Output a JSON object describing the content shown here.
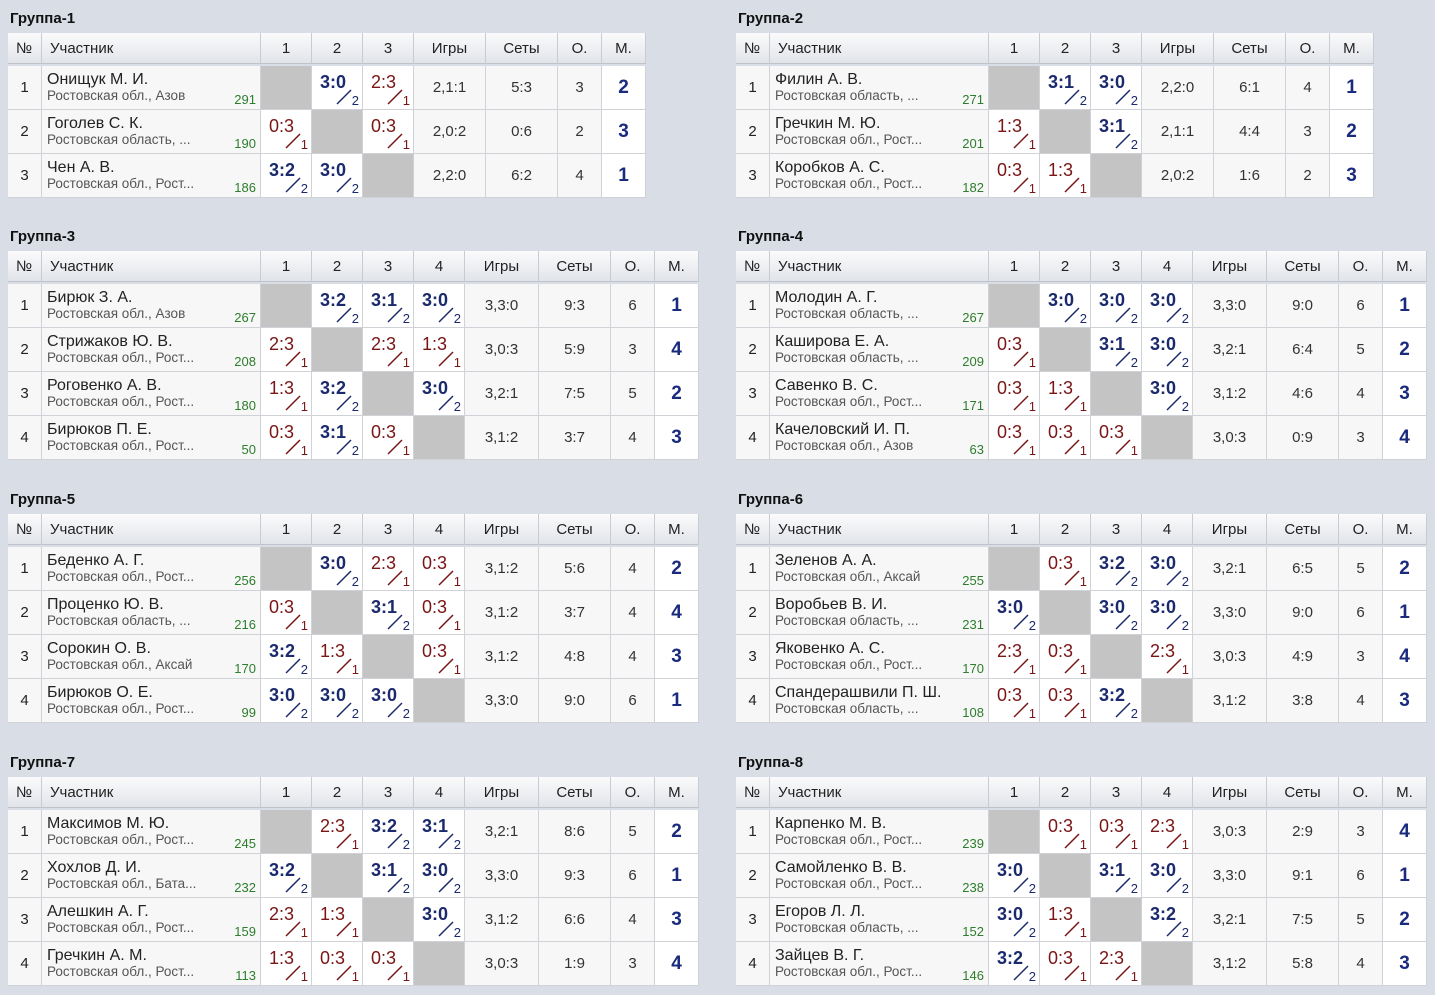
{
  "headers": {
    "num": "№",
    "name": "Участник",
    "games": "Игры",
    "sets": "Сеты",
    "points": "О.",
    "place": "М."
  },
  "groups": [
    {
      "title": "Группа-1",
      "players": [
        {
          "n": "1",
          "name": "Онищук М. И.",
          "city": "Ростовская обл., Азов",
          "rating": "291",
          "games": "2,1:1",
          "sets": "5:3",
          "points": "3",
          "place": "2",
          "results": [
            null,
            {
              "s": "3:0",
              "p": "2",
              "w": true
            },
            {
              "s": "2:3",
              "p": "1",
              "w": false
            }
          ]
        },
        {
          "n": "2",
          "name": "Гоголев С. К.",
          "city": "Ростовская область, ...",
          "rating": "190",
          "games": "2,0:2",
          "sets": "0:6",
          "points": "2",
          "place": "3",
          "results": [
            {
              "s": "0:3",
              "p": "1",
              "w": false
            },
            null,
            {
              "s": "0:3",
              "p": "1",
              "w": false
            }
          ]
        },
        {
          "n": "3",
          "name": "Чен А. В.",
          "city": "Ростовская обл., Рост...",
          "rating": "186",
          "games": "2,2:0",
          "sets": "6:2",
          "points": "4",
          "place": "1",
          "results": [
            {
              "s": "3:2",
              "p": "2",
              "w": true
            },
            {
              "s": "3:0",
              "p": "2",
              "w": true
            },
            null
          ]
        }
      ]
    },
    {
      "title": "Группа-2",
      "players": [
        {
          "n": "1",
          "name": "Филин А. В.",
          "city": "Ростовская область, ...",
          "rating": "271",
          "games": "2,2:0",
          "sets": "6:1",
          "points": "4",
          "place": "1",
          "results": [
            null,
            {
              "s": "3:1",
              "p": "2",
              "w": true
            },
            {
              "s": "3:0",
              "p": "2",
              "w": true
            }
          ]
        },
        {
          "n": "2",
          "name": "Гречкин М. Ю.",
          "city": "Ростовская обл., Рост...",
          "rating": "201",
          "games": "2,1:1",
          "sets": "4:4",
          "points": "3",
          "place": "2",
          "results": [
            {
              "s": "1:3",
              "p": "1",
              "w": false
            },
            null,
            {
              "s": "3:1",
              "p": "2",
              "w": true
            }
          ]
        },
        {
          "n": "3",
          "name": "Коробков А. С.",
          "city": "Ростовская обл., Рост...",
          "rating": "182",
          "games": "2,0:2",
          "sets": "1:6",
          "points": "2",
          "place": "3",
          "results": [
            {
              "s": "0:3",
              "p": "1",
              "w": false
            },
            {
              "s": "1:3",
              "p": "1",
              "w": false
            },
            null
          ]
        }
      ]
    },
    {
      "title": "Группа-3",
      "players": [
        {
          "n": "1",
          "name": "Бирюк З. А.",
          "city": "Ростовская обл., Азов",
          "rating": "267",
          "games": "3,3:0",
          "sets": "9:3",
          "points": "6",
          "place": "1",
          "results": [
            null,
            {
              "s": "3:2",
              "p": "2",
              "w": true
            },
            {
              "s": "3:1",
              "p": "2",
              "w": true
            },
            {
              "s": "3:0",
              "p": "2",
              "w": true
            }
          ]
        },
        {
          "n": "2",
          "name": "Стрижаков Ю. В.",
          "city": "Ростовская обл., Рост...",
          "rating": "208",
          "games": "3,0:3",
          "sets": "5:9",
          "points": "3",
          "place": "4",
          "results": [
            {
              "s": "2:3",
              "p": "1",
              "w": false
            },
            null,
            {
              "s": "2:3",
              "p": "1",
              "w": false
            },
            {
              "s": "1:3",
              "p": "1",
              "w": false
            }
          ]
        },
        {
          "n": "3",
          "name": "Роговенко А. В.",
          "city": "Ростовская обл., Рост...",
          "rating": "180",
          "games": "3,2:1",
          "sets": "7:5",
          "points": "5",
          "place": "2",
          "results": [
            {
              "s": "1:3",
              "p": "1",
              "w": false
            },
            {
              "s": "3:2",
              "p": "2",
              "w": true
            },
            null,
            {
              "s": "3:0",
              "p": "2",
              "w": true
            }
          ]
        },
        {
          "n": "4",
          "name": "Бирюков П. Е.",
          "city": "Ростовская обл., Рост...",
          "rating": "50",
          "games": "3,1:2",
          "sets": "3:7",
          "points": "4",
          "place": "3",
          "results": [
            {
              "s": "0:3",
              "p": "1",
              "w": false
            },
            {
              "s": "3:1",
              "p": "2",
              "w": true
            },
            {
              "s": "0:3",
              "p": "1",
              "w": false
            },
            null
          ]
        }
      ]
    },
    {
      "title": "Группа-4",
      "players": [
        {
          "n": "1",
          "name": "Молодин А. Г.",
          "city": "Ростовская область, ...",
          "rating": "267",
          "games": "3,3:0",
          "sets": "9:0",
          "points": "6",
          "place": "1",
          "results": [
            null,
            {
              "s": "3:0",
              "p": "2",
              "w": true
            },
            {
              "s": "3:0",
              "p": "2",
              "w": true
            },
            {
              "s": "3:0",
              "p": "2",
              "w": true
            }
          ]
        },
        {
          "n": "2",
          "name": "Каширова Е. А.",
          "city": "Ростовская область, ...",
          "rating": "209",
          "games": "3,2:1",
          "sets": "6:4",
          "points": "5",
          "place": "2",
          "results": [
            {
              "s": "0:3",
              "p": "1",
              "w": false
            },
            null,
            {
              "s": "3:1",
              "p": "2",
              "w": true
            },
            {
              "s": "3:0",
              "p": "2",
              "w": true
            }
          ]
        },
        {
          "n": "3",
          "name": "Савенко В. С.",
          "city": "Ростовская обл., Рост...",
          "rating": "171",
          "games": "3,1:2",
          "sets": "4:6",
          "points": "4",
          "place": "3",
          "results": [
            {
              "s": "0:3",
              "p": "1",
              "w": false
            },
            {
              "s": "1:3",
              "p": "1",
              "w": false
            },
            null,
            {
              "s": "3:0",
              "p": "2",
              "w": true
            }
          ]
        },
        {
          "n": "4",
          "name": "Качеловский И. П.",
          "city": "Ростовская обл., Азов",
          "rating": "63",
          "games": "3,0:3",
          "sets": "0:9",
          "points": "3",
          "place": "4",
          "results": [
            {
              "s": "0:3",
              "p": "1",
              "w": false
            },
            {
              "s": "0:3",
              "p": "1",
              "w": false
            },
            {
              "s": "0:3",
              "p": "1",
              "w": false
            },
            null
          ]
        }
      ]
    },
    {
      "title": "Группа-5",
      "players": [
        {
          "n": "1",
          "name": "Беденко А. Г.",
          "city": "Ростовская обл., Рост...",
          "rating": "256",
          "games": "3,1:2",
          "sets": "5:6",
          "points": "4",
          "place": "2",
          "results": [
            null,
            {
              "s": "3:0",
              "p": "2",
              "w": true
            },
            {
              "s": "2:3",
              "p": "1",
              "w": false
            },
            {
              "s": "0:3",
              "p": "1",
              "w": false
            }
          ]
        },
        {
          "n": "2",
          "name": "Проценко Ю. В.",
          "city": "Ростовская область, ...",
          "rating": "216",
          "games": "3,1:2",
          "sets": "3:7",
          "points": "4",
          "place": "4",
          "results": [
            {
              "s": "0:3",
              "p": "1",
              "w": false
            },
            null,
            {
              "s": "3:1",
              "p": "2",
              "w": true
            },
            {
              "s": "0:3",
              "p": "1",
              "w": false
            }
          ]
        },
        {
          "n": "3",
          "name": "Сорокин О. В.",
          "city": "Ростовская обл., Аксай",
          "rating": "170",
          "games": "3,1:2",
          "sets": "4:8",
          "points": "4",
          "place": "3",
          "results": [
            {
              "s": "3:2",
              "p": "2",
              "w": true
            },
            {
              "s": "1:3",
              "p": "1",
              "w": false
            },
            null,
            {
              "s": "0:3",
              "p": "1",
              "w": false
            }
          ]
        },
        {
          "n": "4",
          "name": "Бирюков О. Е.",
          "city": "Ростовская обл., Рост...",
          "rating": "99",
          "games": "3,3:0",
          "sets": "9:0",
          "points": "6",
          "place": "1",
          "results": [
            {
              "s": "3:0",
              "p": "2",
              "w": true
            },
            {
              "s": "3:0",
              "p": "2",
              "w": true
            },
            {
              "s": "3:0",
              "p": "2",
              "w": true
            },
            null
          ]
        }
      ]
    },
    {
      "title": "Группа-6",
      "players": [
        {
          "n": "1",
          "name": "Зеленов А. А.",
          "city": "Ростовская обл., Аксай",
          "rating": "255",
          "games": "3,2:1",
          "sets": "6:5",
          "points": "5",
          "place": "2",
          "results": [
            null,
            {
              "s": "0:3",
              "p": "1",
              "w": false
            },
            {
              "s": "3:2",
              "p": "2",
              "w": true
            },
            {
              "s": "3:0",
              "p": "2",
              "w": true
            }
          ]
        },
        {
          "n": "2",
          "name": "Воробьев В. И.",
          "city": "Ростовская область, ...",
          "rating": "231",
          "games": "3,3:0",
          "sets": "9:0",
          "points": "6",
          "place": "1",
          "results": [
            {
              "s": "3:0",
              "p": "2",
              "w": true
            },
            null,
            {
              "s": "3:0",
              "p": "2",
              "w": true
            },
            {
              "s": "3:0",
              "p": "2",
              "w": true
            }
          ]
        },
        {
          "n": "3",
          "name": "Яковенко А. С.",
          "city": "Ростовская обл., Рост...",
          "rating": "170",
          "games": "3,0:3",
          "sets": "4:9",
          "points": "3",
          "place": "4",
          "results": [
            {
              "s": "2:3",
              "p": "1",
              "w": false
            },
            {
              "s": "0:3",
              "p": "1",
              "w": false
            },
            null,
            {
              "s": "2:3",
              "p": "1",
              "w": false
            }
          ]
        },
        {
          "n": "4",
          "name": "Спандерашвили П. Ш.",
          "city": "Ростовская область, ...",
          "rating": "108",
          "games": "3,1:2",
          "sets": "3:8",
          "points": "4",
          "place": "3",
          "results": [
            {
              "s": "0:3",
              "p": "1",
              "w": false
            },
            {
              "s": "0:3",
              "p": "1",
              "w": false
            },
            {
              "s": "3:2",
              "p": "2",
              "w": true
            },
            null
          ]
        }
      ]
    },
    {
      "title": "Группа-7",
      "players": [
        {
          "n": "1",
          "name": "Максимов М. Ю.",
          "city": "Ростовская обл., Рост...",
          "rating": "245",
          "games": "3,2:1",
          "sets": "8:6",
          "points": "5",
          "place": "2",
          "results": [
            null,
            {
              "s": "2:3",
              "p": "1",
              "w": false
            },
            {
              "s": "3:2",
              "p": "2",
              "w": true
            },
            {
              "s": "3:1",
              "p": "2",
              "w": true
            }
          ]
        },
        {
          "n": "2",
          "name": "Хохлов Д. И.",
          "city": "Ростовская обл., Бата...",
          "rating": "232",
          "games": "3,3:0",
          "sets": "9:3",
          "points": "6",
          "place": "1",
          "results": [
            {
              "s": "3:2",
              "p": "2",
              "w": true
            },
            null,
            {
              "s": "3:1",
              "p": "2",
              "w": true
            },
            {
              "s": "3:0",
              "p": "2",
              "w": true
            }
          ]
        },
        {
          "n": "3",
          "name": "Алешкин А. Г.",
          "city": "Ростовская обл., Рост...",
          "rating": "159",
          "games": "3,1:2",
          "sets": "6:6",
          "points": "4",
          "place": "3",
          "results": [
            {
              "s": "2:3",
              "p": "1",
              "w": false
            },
            {
              "s": "1:3",
              "p": "1",
              "w": false
            },
            null,
            {
              "s": "3:0",
              "p": "2",
              "w": true
            }
          ]
        },
        {
          "n": "4",
          "name": "Гречкин А. М.",
          "city": "Ростовская обл., Рост...",
          "rating": "113",
          "games": "3,0:3",
          "sets": "1:9",
          "points": "3",
          "place": "4",
          "results": [
            {
              "s": "1:3",
              "p": "1",
              "w": false
            },
            {
              "s": "0:3",
              "p": "1",
              "w": false
            },
            {
              "s": "0:3",
              "p": "1",
              "w": false
            },
            null
          ]
        }
      ]
    },
    {
      "title": "Группа-8",
      "players": [
        {
          "n": "1",
          "name": "Карпенко М. В.",
          "city": "Ростовская обл., Рост...",
          "rating": "239",
          "games": "3,0:3",
          "sets": "2:9",
          "points": "3",
          "place": "4",
          "results": [
            null,
            {
              "s": "0:3",
              "p": "1",
              "w": false
            },
            {
              "s": "0:3",
              "p": "1",
              "w": false
            },
            {
              "s": "2:3",
              "p": "1",
              "w": false
            }
          ]
        },
        {
          "n": "2",
          "name": "Самойленко В. В.",
          "city": "Ростовская обл., Рост...",
          "rating": "238",
          "games": "3,3:0",
          "sets": "9:1",
          "points": "6",
          "place": "1",
          "results": [
            {
              "s": "3:0",
              "p": "2",
              "w": true
            },
            null,
            {
              "s": "3:1",
              "p": "2",
              "w": true
            },
            {
              "s": "3:0",
              "p": "2",
              "w": true
            }
          ]
        },
        {
          "n": "3",
          "name": "Егоров Л. Л.",
          "city": "Ростовская область, ...",
          "rating": "152",
          "games": "3,2:1",
          "sets": "7:5",
          "points": "5",
          "place": "2",
          "results": [
            {
              "s": "3:0",
              "p": "2",
              "w": true
            },
            {
              "s": "1:3",
              "p": "1",
              "w": false
            },
            null,
            {
              "s": "3:2",
              "p": "2",
              "w": true
            }
          ]
        },
        {
          "n": "4",
          "name": "Зайцев В. Г.",
          "city": "Ростовская обл., Рост...",
          "rating": "146",
          "games": "3,1:2",
          "sets": "5:8",
          "points": "4",
          "place": "3",
          "results": [
            {
              "s": "3:2",
              "p": "2",
              "w": true
            },
            {
              "s": "0:3",
              "p": "1",
              "w": false
            },
            {
              "s": "2:3",
              "p": "1",
              "w": false
            },
            null
          ]
        }
      ]
    }
  ]
}
